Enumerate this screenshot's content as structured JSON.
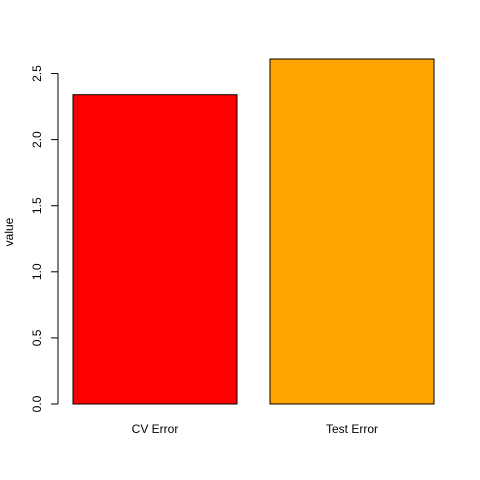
{
  "chart_data": {
    "type": "bar",
    "categories": [
      "CV Error",
      "Test Error"
    ],
    "values": [
      2.34,
      2.61
    ],
    "colors": [
      "#ff0000",
      "#ffa500"
    ],
    "title": "",
    "xlabel": "",
    "ylabel": "value",
    "ylim": [
      0,
      2.61
    ],
    "yticks": [
      0.0,
      0.5,
      1.0,
      1.5,
      2.0,
      2.5
    ],
    "ytick_labels": [
      "0.0",
      "0.5",
      "1.0",
      "1.5",
      "2.0",
      "2.5"
    ],
    "grid": false,
    "legend": "none"
  }
}
